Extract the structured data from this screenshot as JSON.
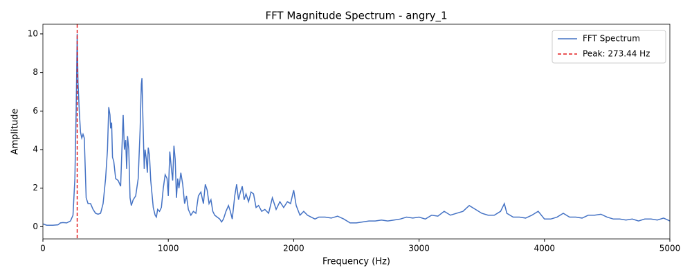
{
  "chart_data": {
    "type": "line",
    "title": "FFT Magnitude Spectrum - angry_1",
    "x_label": "Frequency (Hz)",
    "y_label": "Amplitude",
    "xlim": [
      0,
      5000
    ],
    "ylim": [
      -0.63,
      10.5
    ],
    "xticks": [
      0,
      1000,
      2000,
      3000,
      4000,
      5000
    ],
    "yticks": [
      0,
      2,
      4,
      6,
      8,
      10
    ],
    "legend": "upper right",
    "peak": {
      "name": "Peak: 273.44 Hz",
      "x": 273.44,
      "color": "#e41a1c"
    },
    "x": [
      0,
      30,
      80,
      120,
      140,
      160,
      190,
      220,
      240,
      255,
      265,
      273.44,
      280,
      290,
      300,
      310,
      320,
      330,
      345,
      360,
      380,
      400,
      420,
      440,
      460,
      480,
      500,
      515,
      525,
      535,
      540,
      548,
      555,
      565,
      580,
      600,
      620,
      630,
      640,
      650,
      660,
      668,
      675,
      685,
      695,
      705,
      720,
      740,
      760,
      775,
      785,
      790,
      798,
      808,
      815,
      825,
      833,
      840,
      850,
      860,
      870,
      880,
      895,
      905,
      915,
      930,
      945,
      960,
      975,
      990,
      1000,
      1012,
      1025,
      1035,
      1045,
      1055,
      1065,
      1075,
      1085,
      1100,
      1115,
      1130,
      1145,
      1160,
      1180,
      1200,
      1220,
      1240,
      1260,
      1280,
      1295,
      1310,
      1325,
      1340,
      1355,
      1370,
      1390,
      1410,
      1425,
      1440,
      1460,
      1480,
      1495,
      1510,
      1530,
      1545,
      1560,
      1575,
      1590,
      1605,
      1620,
      1640,
      1660,
      1680,
      1700,
      1720,
      1745,
      1770,
      1800,
      1830,
      1860,
      1890,
      1920,
      1950,
      1975,
      2000,
      2020,
      2050,
      2080,
      2110,
      2140,
      2170,
      2200,
      2250,
      2300,
      2350,
      2400,
      2450,
      2500,
      2550,
      2600,
      2650,
      2700,
      2750,
      2800,
      2850,
      2900,
      2950,
      3000,
      3050,
      3100,
      3150,
      3200,
      3250,
      3300,
      3350,
      3400,
      3450,
      3500,
      3550,
      3600,
      3650,
      3680,
      3700,
      3750,
      3800,
      3850,
      3900,
      3950,
      4000,
      4050,
      4100,
      4150,
      4200,
      4250,
      4300,
      4350,
      4400,
      4450,
      4500,
      4550,
      4600,
      4650,
      4700,
      4750,
      4800,
      4850,
      4900,
      4950,
      5000
    ],
    "series": [
      {
        "name": "FFT Spectrum",
        "color": "#4472c4",
        "values": [
          0.15,
          0.08,
          0.08,
          0.1,
          0.2,
          0.22,
          0.2,
          0.3,
          0.6,
          2.5,
          6,
          10,
          7.5,
          6,
          4.9,
          4.6,
          4.8,
          4.6,
          1.5,
          1.2,
          1.2,
          0.9,
          0.7,
          0.65,
          0.7,
          1.2,
          2.5,
          4,
          6.2,
          5.8,
          5.1,
          5.4,
          3.6,
          3.4,
          2.5,
          2.4,
          2.1,
          4,
          5.8,
          4,
          4.5,
          3,
          4.7,
          4,
          1.5,
          1.1,
          1.4,
          1.6,
          2.5,
          5,
          7.4,
          7.7,
          5.5,
          3,
          4,
          3.5,
          2.8,
          4.1,
          3.7,
          2.4,
          1.7,
          1,
          0.6,
          0.5,
          0.9,
          0.8,
          1,
          2,
          2.7,
          2.5,
          1.6,
          3.9,
          3,
          2.4,
          4.2,
          3.5,
          1.5,
          2.5,
          2,
          2.8,
          2.2,
          1.2,
          1.6,
          0.9,
          0.6,
          0.8,
          0.7,
          1.6,
          1.8,
          1.2,
          2.2,
          1.9,
          1.2,
          1.4,
          0.8,
          0.6,
          0.5,
          0.4,
          0.25,
          0.4,
          0.8,
          1.1,
          0.8,
          0.4,
          1.6,
          2.2,
          1.4,
          1.8,
          2.1,
          1.4,
          1.7,
          1.3,
          1.8,
          1.7,
          1,
          1.1,
          0.8,
          0.9,
          0.7,
          1.5,
          0.9,
          1.3,
          1,
          1.3,
          1.2,
          1.9,
          1.1,
          0.6,
          0.8,
          0.6,
          0.5,
          0.4,
          0.5,
          0.5,
          0.45,
          0.55,
          0.4,
          0.2,
          0.2,
          0.25,
          0.3,
          0.3,
          0.35,
          0.3,
          0.35,
          0.4,
          0.5,
          0.45,
          0.5,
          0.4,
          0.6,
          0.55,
          0.8,
          0.6,
          0.7,
          0.8,
          1.1,
          0.9,
          0.7,
          0.6,
          0.6,
          0.8,
          1.2,
          0.7,
          0.5,
          0.5,
          0.45,
          0.6,
          0.8,
          0.4,
          0.4,
          0.5,
          0.7,
          0.5,
          0.5,
          0.45,
          0.6,
          0.6,
          0.65,
          0.5,
          0.4,
          0.4,
          0.35,
          0.4,
          0.3,
          0.4,
          0.4,
          0.35,
          0.45,
          0.3
        ]
      }
    ]
  }
}
